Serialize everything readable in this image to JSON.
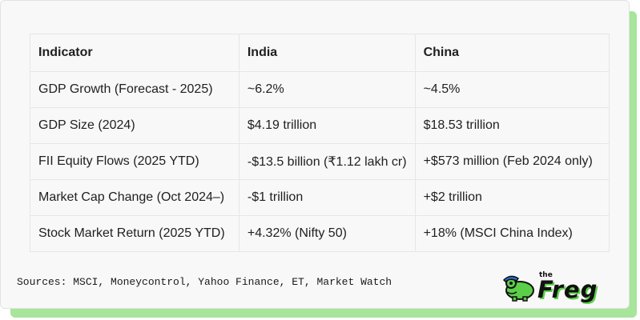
{
  "table": {
    "headers": [
      "Indicator",
      "India",
      "China"
    ],
    "rows": [
      [
        "GDP Growth (Forecast - 2025)",
        "~6.2%",
        "~4.5%"
      ],
      [
        "GDP Size (2024)",
        "$4.19 trillion",
        "$18.53 trillion"
      ],
      [
        "FII Equity Flows (2025 YTD)",
        "-$13.5 billion (₹1.12 lakh cr)",
        "+$573 million (Feb 2024 only)"
      ],
      [
        "Market Cap Change (Oct 2024–)",
        "-$1 trillion",
        "+$2 trillion"
      ],
      [
        "Stock Market Return (2025 YTD)",
        "+4.32% (Nifty 50)",
        "+18% (MSCI China Index)"
      ]
    ]
  },
  "footer": {
    "sources": "Sources: MSCI, Moneycontrol, Yahoo Finance, ET, Market Watch"
  },
  "brand": {
    "the_label": "the",
    "name": "Freg",
    "accent_color": "#5ccf4a",
    "shadow_color": "#a6e59a",
    "mascot_icon": "frog-mascot-icon"
  }
}
